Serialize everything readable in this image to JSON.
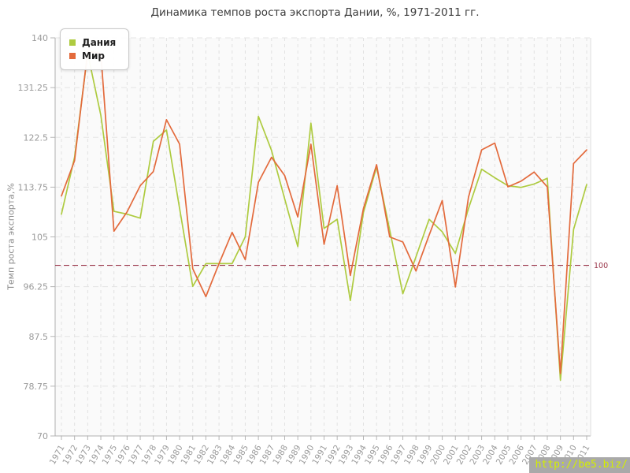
{
  "watermark": "http://be5.biz/",
  "chart_data": {
    "type": "line",
    "title": "Динамика темпов роста экспорта Дании, %, 1971-2011 гг.",
    "xlabel": "",
    "ylabel": "Темп роста экспорта,%",
    "ylim": [
      70,
      140
    ],
    "grid": true,
    "legend_position": "top-left",
    "y_ticks": [
      70,
      78.75,
      87.5,
      96.25,
      105,
      113.75,
      122.5,
      131.25,
      140
    ],
    "y_tick_labels": [
      "70",
      "78.75",
      "87.5",
      "96.25",
      "105",
      "113.75",
      "122.5",
      "131.25",
      "140"
    ],
    "baseline": {
      "value": 100,
      "label": "100",
      "color": "#993347"
    },
    "x": [
      1971,
      1972,
      1973,
      1974,
      1975,
      1976,
      1977,
      1978,
      1979,
      1980,
      1981,
      1982,
      1983,
      1984,
      1985,
      1986,
      1987,
      1988,
      1989,
      1990,
      1991,
      1992,
      1993,
      1994,
      1995,
      1996,
      1997,
      1998,
      1999,
      2000,
      2001,
      2002,
      2003,
      2004,
      2005,
      2006,
      2007,
      2008,
      2009,
      2010,
      2011
    ],
    "series": [
      {
        "name": "Дания",
        "color": "#aecb40",
        "values": [
          109,
          119,
          137.3,
          126.4,
          109.5,
          109,
          108.3,
          121.8,
          123.8,
          110,
          96.3,
          100.3,
          100.3,
          100.3,
          105,
          126.2,
          120.2,
          111.7,
          103.3,
          125,
          106.5,
          108.1,
          93.8,
          109.3,
          117.3,
          106.2,
          95,
          101.5,
          108.1,
          105.9,
          102.1,
          110,
          116.9,
          115.4,
          114,
          113.7,
          114.3,
          115.3,
          79.8,
          106.3,
          114.2
        ]
      },
      {
        "name": "Мир",
        "color": "#e36a3c",
        "values": [
          112.2,
          118.4,
          137.6,
          137.3,
          106,
          109.4,
          114,
          116.5,
          125.6,
          121.3,
          99.4,
          94.5,
          100.3,
          105.8,
          101,
          114.6,
          119,
          115.8,
          108.5,
          121.3,
          103.7,
          114,
          98.2,
          110,
          117.7,
          105,
          104.1,
          99,
          105.3,
          111.4,
          96.2,
          112,
          120.3,
          121.5,
          113.8,
          114.8,
          116.4,
          113.8,
          81,
          117.9,
          120.3
        ]
      }
    ]
  }
}
